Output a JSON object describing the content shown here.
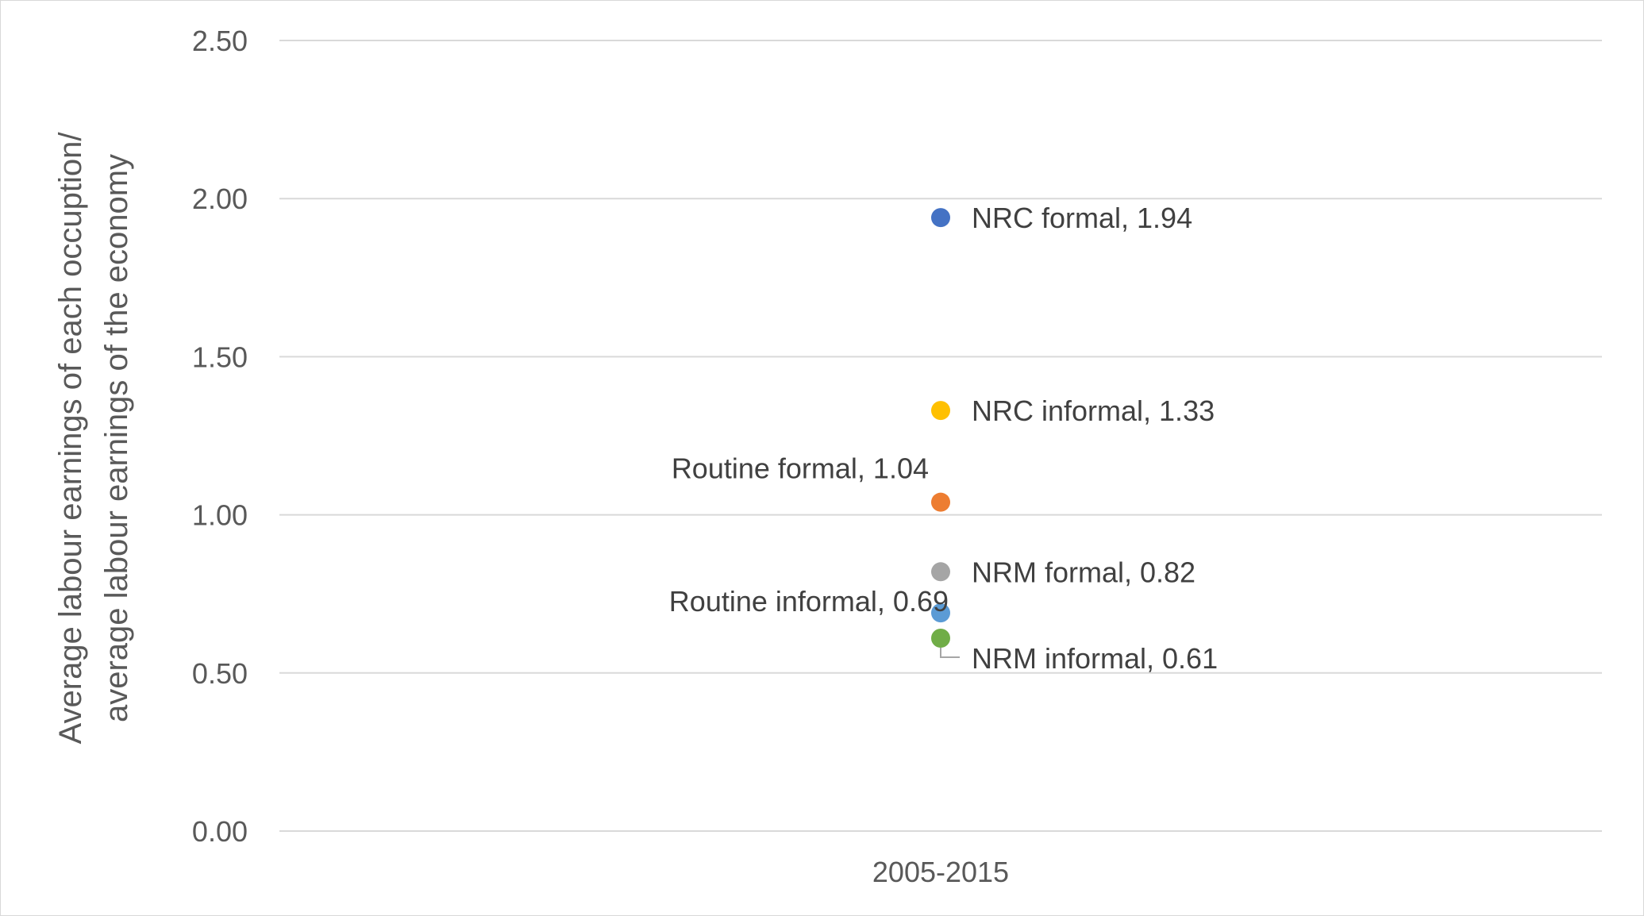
{
  "chart_data": {
    "type": "scatter",
    "title": "",
    "xlabel": "",
    "ylabel_lines": [
      "Average labour earnings of each occuption/",
      "average labour earnings of the economy"
    ],
    "categories": [
      "2005-2015"
    ],
    "ylim": [
      0,
      2.5
    ],
    "yticks": [
      "0.00",
      "0.50",
      "1.00",
      "1.50",
      "2.00",
      "2.50"
    ],
    "ytick_values": [
      0,
      0.5,
      1,
      1.5,
      2,
      2.5
    ],
    "grid": true,
    "legend": "none",
    "series": [
      {
        "name": "NRC formal",
        "values": [
          1.94
        ],
        "color": "#4472C4",
        "label": "NRC formal, 1.94",
        "label_side": "right"
      },
      {
        "name": "NRC informal",
        "values": [
          1.33
        ],
        "color": "#FFC000",
        "label": "NRC informal, 1.33",
        "label_side": "right"
      },
      {
        "name": "Routine formal",
        "values": [
          1.04
        ],
        "color": "#ED7D31",
        "label": "Routine formal, 1.04",
        "label_side": "above-left"
      },
      {
        "name": "NRM formal",
        "values": [
          0.82
        ],
        "color": "#A5A5A5",
        "label": "NRM formal, 0.82",
        "label_side": "right"
      },
      {
        "name": "Routine informal",
        "values": [
          0.69
        ],
        "color": "#5B9BD5",
        "label": "Routine informal, 0.69",
        "label_side": "left"
      },
      {
        "name": "NRM informal",
        "values": [
          0.61
        ],
        "color": "#70AD47",
        "label": "NRM informal, 0.61",
        "label_side": "below-right-leader"
      }
    ]
  }
}
